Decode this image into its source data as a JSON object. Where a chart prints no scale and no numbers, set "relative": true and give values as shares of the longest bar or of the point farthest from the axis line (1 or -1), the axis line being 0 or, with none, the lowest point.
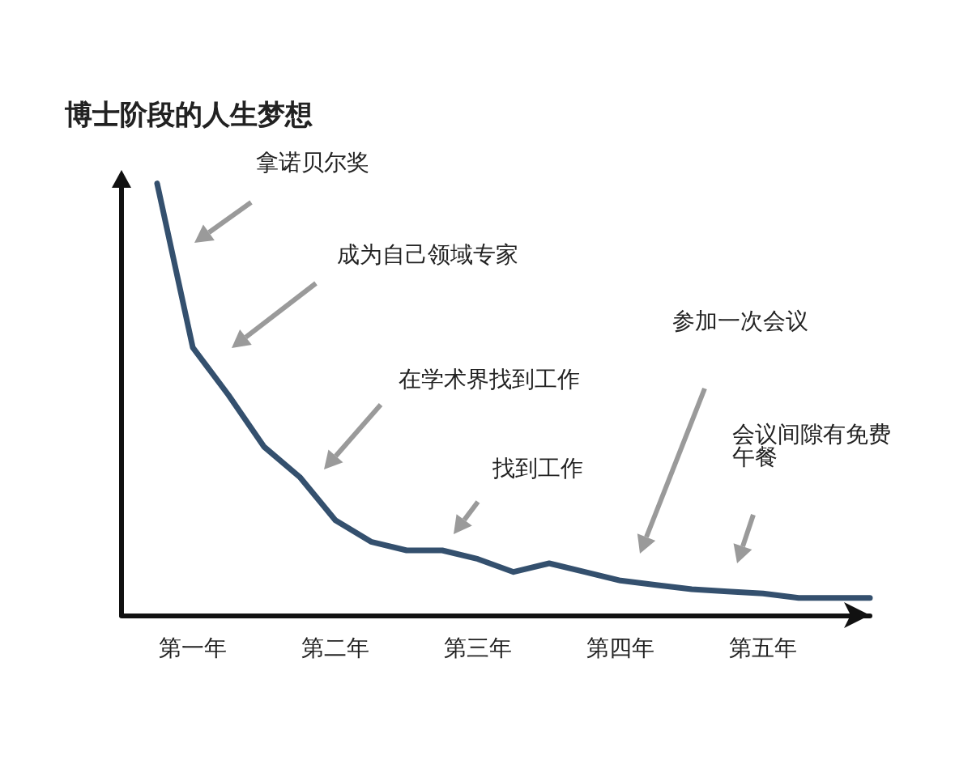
{
  "chart_data": {
    "type": "line",
    "title": "博士阶段的人生梦想",
    "relative": true,
    "categories": [
      null,
      null,
      "第一年",
      null,
      null,
      null,
      "第二年",
      null,
      null,
      null,
      "第三年",
      null,
      null,
      null,
      "第四年",
      null,
      null,
      null,
      "第五年",
      null,
      null,
      null
    ],
    "series": [
      {
        "color": "#34506e",
        "values": [
          null,
          1,
          0.62,
          0.51,
          0.39,
          0.32,
          0.22,
          0.17,
          0.15,
          0.15,
          0.13,
          0.1,
          0.12,
          0.1,
          0.08,
          0.07,
          0.06,
          0.055,
          0.05,
          0.04,
          0.04,
          0.04
        ]
      }
    ],
    "tick_labels": "x",
    "grid": false,
    "marker": "none",
    "line_style": "solid",
    "annotations": [
      "拿诺贝尔奖",
      "成为自己领域专家",
      "在学术界找到工作",
      "找到工作",
      "参加一次会议",
      "会议间隙有免费午餐"
    ]
  }
}
